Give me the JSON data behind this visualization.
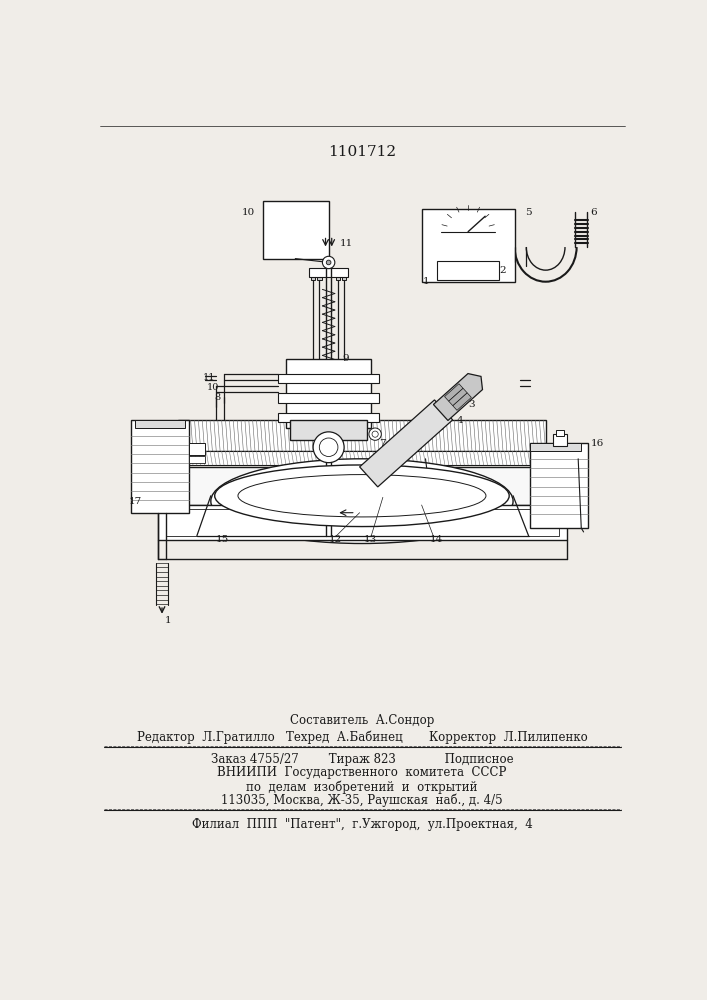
{
  "title": "1101712",
  "bg_color": "#f0ede8",
  "line_color": "#1a1a1a",
  "footer": {
    "line1": "Составитель  А.Сондор",
    "line2": "Редактор  Л.Гратилло   Техред  А.Бабинец       Корректор  Л.Пилипенко",
    "line3": "Заказ 4755/27        Тираж 823             Подписное",
    "line4": "ВНИИПИ  Государственного  комитета  СССР",
    "line5": "по  делам  изобретений  и  открытий",
    "line6": "113035, Москва, Ж-35, Раушская  наб., д. 4/5",
    "line7": "Филиал  ППП  \"Патент\",  г.Ужгород,  ул.Проектная,  4"
  }
}
